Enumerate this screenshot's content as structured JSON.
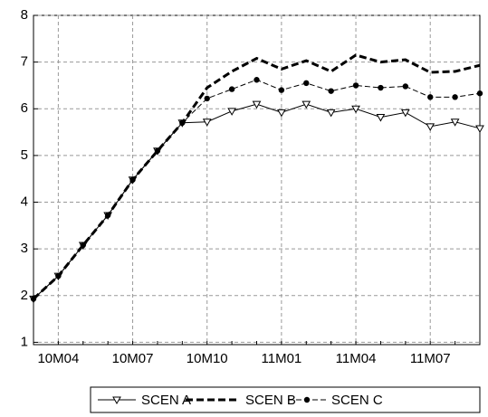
{
  "chart_data": {
    "type": "line",
    "categories": [
      null,
      "10M04",
      null,
      null,
      "10M07",
      null,
      null,
      "10M10",
      null,
      null,
      "11M01",
      null,
      null,
      "11M04",
      null,
      null,
      "11M07",
      null,
      null
    ],
    "series": [
      {
        "name": "SCEN A",
        "color": "#000000",
        "dash": "solid",
        "marker": "triangle-down",
        "values": [
          1.93,
          2.42,
          3.08,
          3.72,
          4.48,
          5.1,
          5.7,
          5.72,
          5.95,
          6.1,
          5.92,
          6.1,
          5.92,
          6.0,
          5.82,
          5.92,
          5.62,
          5.72,
          5.58
        ]
      },
      {
        "name": "SCEN B",
        "color": "#000000",
        "dash": "dashed",
        "marker": "none",
        "values": [
          1.93,
          2.42,
          3.08,
          3.72,
          4.48,
          5.1,
          5.7,
          6.45,
          6.8,
          7.08,
          6.85,
          7.03,
          6.8,
          7.15,
          7.0,
          7.05,
          6.78,
          6.8,
          6.93
        ]
      },
      {
        "name": "SCEN C",
        "color": "#000000",
        "dash": "dash-dot",
        "marker": "circle",
        "values": [
          1.93,
          2.42,
          3.08,
          3.72,
          4.48,
          5.1,
          5.7,
          6.22,
          6.42,
          6.62,
          6.4,
          6.55,
          6.38,
          6.5,
          6.45,
          6.48,
          6.25,
          6.25,
          6.33
        ]
      }
    ],
    "ylim": [
      0.95,
      8
    ],
    "yticks": [
      1,
      2,
      3,
      4,
      5,
      6,
      7,
      8
    ],
    "grid": true,
    "legend": "bottom"
  }
}
